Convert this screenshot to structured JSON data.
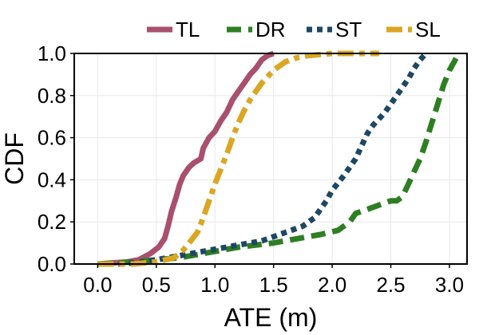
{
  "chart_data": {
    "type": "line",
    "title": "",
    "xlabel": "ATE (m)",
    "ylabel": "CDF",
    "xlim": [
      -0.2,
      3.15
    ],
    "ylim": [
      0.0,
      1.0
    ],
    "grid": true,
    "legend_position": "top-center",
    "x_ticks": [
      {
        "value": 0.0,
        "label": "0.0"
      },
      {
        "value": 0.5,
        "label": "0.5"
      },
      {
        "value": 1.0,
        "label": "1.0"
      },
      {
        "value": 1.5,
        "label": "1.5"
      },
      {
        "value": 2.0,
        "label": "2.0"
      },
      {
        "value": 2.5,
        "label": "2.5"
      },
      {
        "value": 3.0,
        "label": "3.0"
      }
    ],
    "y_ticks": [
      {
        "value": 0.0,
        "label": "0.0"
      },
      {
        "value": 0.2,
        "label": "0.2"
      },
      {
        "value": 0.4,
        "label": "0.4"
      },
      {
        "value": 0.6,
        "label": "0.6"
      },
      {
        "value": 0.8,
        "label": "0.8"
      },
      {
        "value": 1.0,
        "label": "1.0"
      }
    ],
    "series": [
      {
        "name": "TL",
        "color": "#a8506e",
        "dash": "solid",
        "x": [
          0.0,
          0.25,
          0.35,
          0.45,
          0.52,
          0.57,
          0.6,
          0.63,
          0.67,
          0.7,
          0.73,
          0.78,
          0.82,
          0.88,
          0.9,
          0.95,
          1.0,
          1.05,
          1.1,
          1.15,
          1.2,
          1.25,
          1.3,
          1.35,
          1.4,
          1.45,
          1.5
        ],
        "y": [
          0.0,
          0.01,
          0.02,
          0.05,
          0.08,
          0.12,
          0.18,
          0.25,
          0.32,
          0.38,
          0.42,
          0.46,
          0.48,
          0.5,
          0.55,
          0.6,
          0.63,
          0.68,
          0.72,
          0.78,
          0.82,
          0.86,
          0.9,
          0.93,
          0.97,
          0.99,
          1.0
        ]
      },
      {
        "name": "DR",
        "color": "#2e7f22",
        "dash": "dash",
        "x": [
          0.0,
          0.3,
          0.5,
          0.7,
          0.9,
          1.2,
          1.5,
          1.7,
          1.9,
          2.05,
          2.15,
          2.2,
          2.3,
          2.4,
          2.5,
          2.55,
          2.6,
          2.65,
          2.7,
          2.75,
          2.8,
          2.85,
          2.9,
          2.95,
          3.0,
          3.05,
          3.08
        ],
        "y": [
          0.0,
          0.01,
          0.02,
          0.03,
          0.05,
          0.08,
          0.1,
          0.12,
          0.14,
          0.16,
          0.2,
          0.24,
          0.26,
          0.28,
          0.3,
          0.3,
          0.32,
          0.38,
          0.44,
          0.5,
          0.58,
          0.67,
          0.76,
          0.85,
          0.92,
          0.97,
          1.0
        ]
      },
      {
        "name": "ST",
        "color": "#1e4763",
        "dash": "dot",
        "x": [
          0.0,
          0.2,
          0.4,
          0.6,
          0.8,
          1.0,
          1.2,
          1.4,
          1.6,
          1.75,
          1.85,
          1.9,
          1.95,
          2.0,
          2.1,
          2.2,
          2.25,
          2.3,
          2.35,
          2.45,
          2.55,
          2.65,
          2.7,
          2.75,
          2.8
        ],
        "y": [
          0.0,
          0.0,
          0.01,
          0.03,
          0.05,
          0.07,
          0.09,
          0.11,
          0.15,
          0.18,
          0.22,
          0.26,
          0.3,
          0.35,
          0.42,
          0.5,
          0.56,
          0.62,
          0.66,
          0.72,
          0.8,
          0.88,
          0.93,
          0.97,
          1.0
        ]
      },
      {
        "name": "SL",
        "color": "#dba624",
        "dash": "dashdot",
        "x": [
          0.0,
          0.3,
          0.5,
          0.65,
          0.72,
          0.78,
          0.85,
          0.9,
          0.95,
          1.0,
          1.05,
          1.1,
          1.15,
          1.2,
          1.25,
          1.3,
          1.35,
          1.4,
          1.45,
          1.5,
          1.55,
          1.6,
          1.7,
          1.8,
          2.0,
          2.2,
          2.4
        ],
        "y": [
          0.0,
          0.0,
          0.01,
          0.03,
          0.06,
          0.1,
          0.15,
          0.22,
          0.3,
          0.38,
          0.45,
          0.52,
          0.6,
          0.67,
          0.73,
          0.78,
          0.82,
          0.86,
          0.89,
          0.92,
          0.94,
          0.96,
          0.98,
          0.99,
          1.0,
          1.0,
          1.0
        ]
      }
    ]
  }
}
